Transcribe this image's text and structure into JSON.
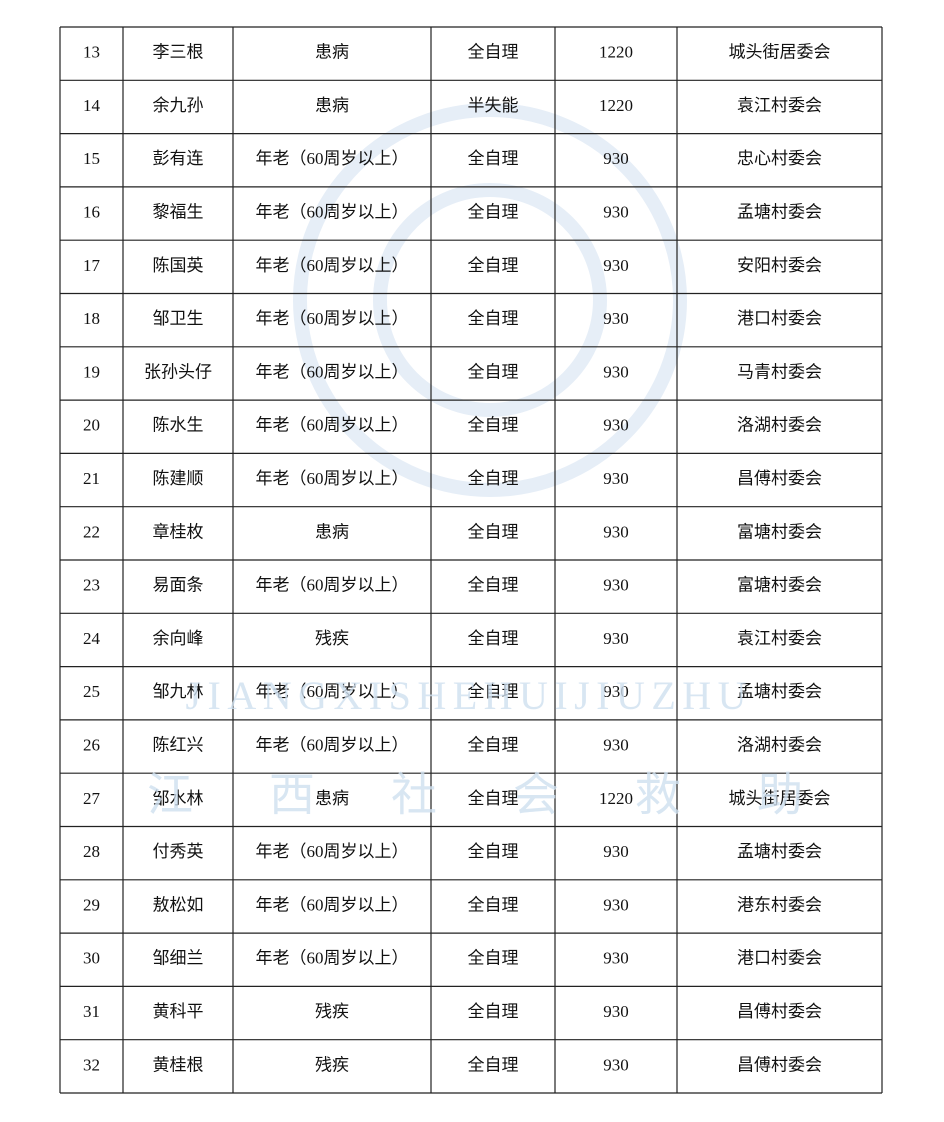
{
  "table": {
    "rows": [
      [
        "13",
        "李三根",
        "患病",
        "全自理",
        "1220",
        "城头街居委会"
      ],
      [
        "14",
        "余九孙",
        "患病",
        "半失能",
        "1220",
        "袁江村委会"
      ],
      [
        "15",
        "彭有连",
        "年老（60周岁以上）",
        "全自理",
        "930",
        "忠心村委会"
      ],
      [
        "16",
        "黎福生",
        "年老（60周岁以上）",
        "全自理",
        "930",
        "孟塘村委会"
      ],
      [
        "17",
        "陈国英",
        "年老（60周岁以上）",
        "全自理",
        "930",
        "安阳村委会"
      ],
      [
        "18",
        "邹卫生",
        "年老（60周岁以上）",
        "全自理",
        "930",
        "港口村委会"
      ],
      [
        "19",
        "张孙头仔",
        "年老（60周岁以上）",
        "全自理",
        "930",
        "马青村委会"
      ],
      [
        "20",
        "陈水生",
        "年老（60周岁以上）",
        "全自理",
        "930",
        "洛湖村委会"
      ],
      [
        "21",
        "陈建顺",
        "年老（60周岁以上）",
        "全自理",
        "930",
        "昌傅村委会"
      ],
      [
        "22",
        "章桂枚",
        "患病",
        "全自理",
        "930",
        "富塘村委会"
      ],
      [
        "23",
        "易面条",
        "年老（60周岁以上）",
        "全自理",
        "930",
        "富塘村委会"
      ],
      [
        "24",
        "余向峰",
        "残疾",
        "全自理",
        "930",
        "袁江村委会"
      ],
      [
        "25",
        "邹九林",
        "年老（60周岁以上）",
        "全自理",
        "930",
        "孟塘村委会"
      ],
      [
        "26",
        "陈红兴",
        "年老（60周岁以上）",
        "全自理",
        "930",
        "洛湖村委会"
      ],
      [
        "27",
        "邹水林",
        "患病",
        "全自理",
        "1220",
        "城头街居委会"
      ],
      [
        "28",
        "付秀英",
        "年老（60周岁以上）",
        "全自理",
        "930",
        "孟塘村委会"
      ],
      [
        "29",
        "敖松如",
        "年老（60周岁以上）",
        "全自理",
        "930",
        "港东村委会"
      ],
      [
        "30",
        "邹细兰",
        "年老（60周岁以上）",
        "全自理",
        "930",
        "港口村委会"
      ],
      [
        "31",
        "黄科平",
        "残疾",
        "全自理",
        "930",
        "昌傅村委会"
      ],
      [
        "32",
        "黄桂根",
        "残疾",
        "全自理",
        "930",
        "昌傅村委会"
      ]
    ]
  },
  "watermark": {
    "latin": "JIANGXISHEHUIJIUZHU",
    "chinese": [
      "江",
      "西",
      "社",
      "会",
      "救",
      "助"
    ]
  }
}
